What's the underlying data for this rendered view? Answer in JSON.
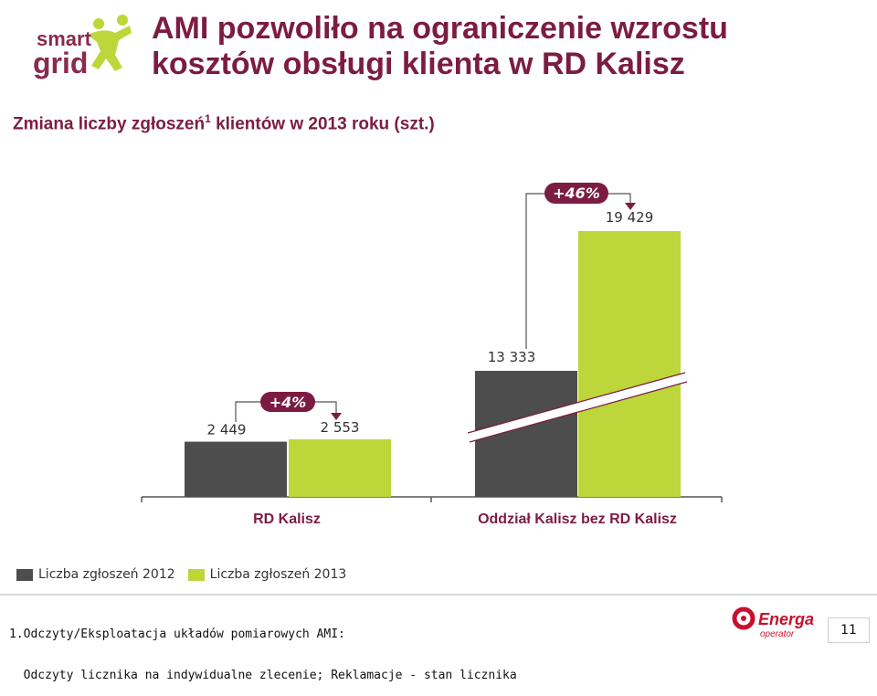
{
  "header": {
    "logo_text_1": "smart",
    "logo_text_2": "grid",
    "title_line_1": "AMI pozwoliło na ograniczenie wzrostu",
    "title_line_2": "kosztów obsługi klienta w RD Kalisz",
    "subtitle_main": "Zmiana liczby zgłoszeń",
    "subtitle_sup": "1",
    "subtitle_rest": " klientów w 2013 roku (szt.)"
  },
  "chart_data": {
    "type": "bar",
    "categories": [
      "RD Kalisz",
      "Oddział Kalisz bez RD Kalisz"
    ],
    "series": [
      {
        "name": "Liczba zgłoszeń 2012",
        "values": [
          2449,
          13333
        ],
        "labels": [
          "2 449",
          "13 333"
        ],
        "color": "#4d4d4d"
      },
      {
        "name": "Liczba zgłoszeń 2013",
        "values": [
          2553,
          19429
        ],
        "labels": [
          "2 553",
          "19 429"
        ],
        "color": "#bdd63a"
      }
    ],
    "growth_labels": [
      "+4%",
      "+46%"
    ],
    "axis_break": true
  },
  "footnote": {
    "line_1": "1.Odczyty/Eksploatacja układów pomiarowych AMI:",
    "line_2": "  Odczyty licznika na indywidualne zlecenie; Reklamacje - stan licznika"
  },
  "footer": {
    "logo_text_1": "Energa",
    "logo_text_2": "operator",
    "page_number": "11"
  },
  "colors": {
    "title": "#7c1c43",
    "accent_green": "#bdd63a",
    "dark_bar": "#4d4d4d",
    "energa_red": "#c8102e"
  }
}
